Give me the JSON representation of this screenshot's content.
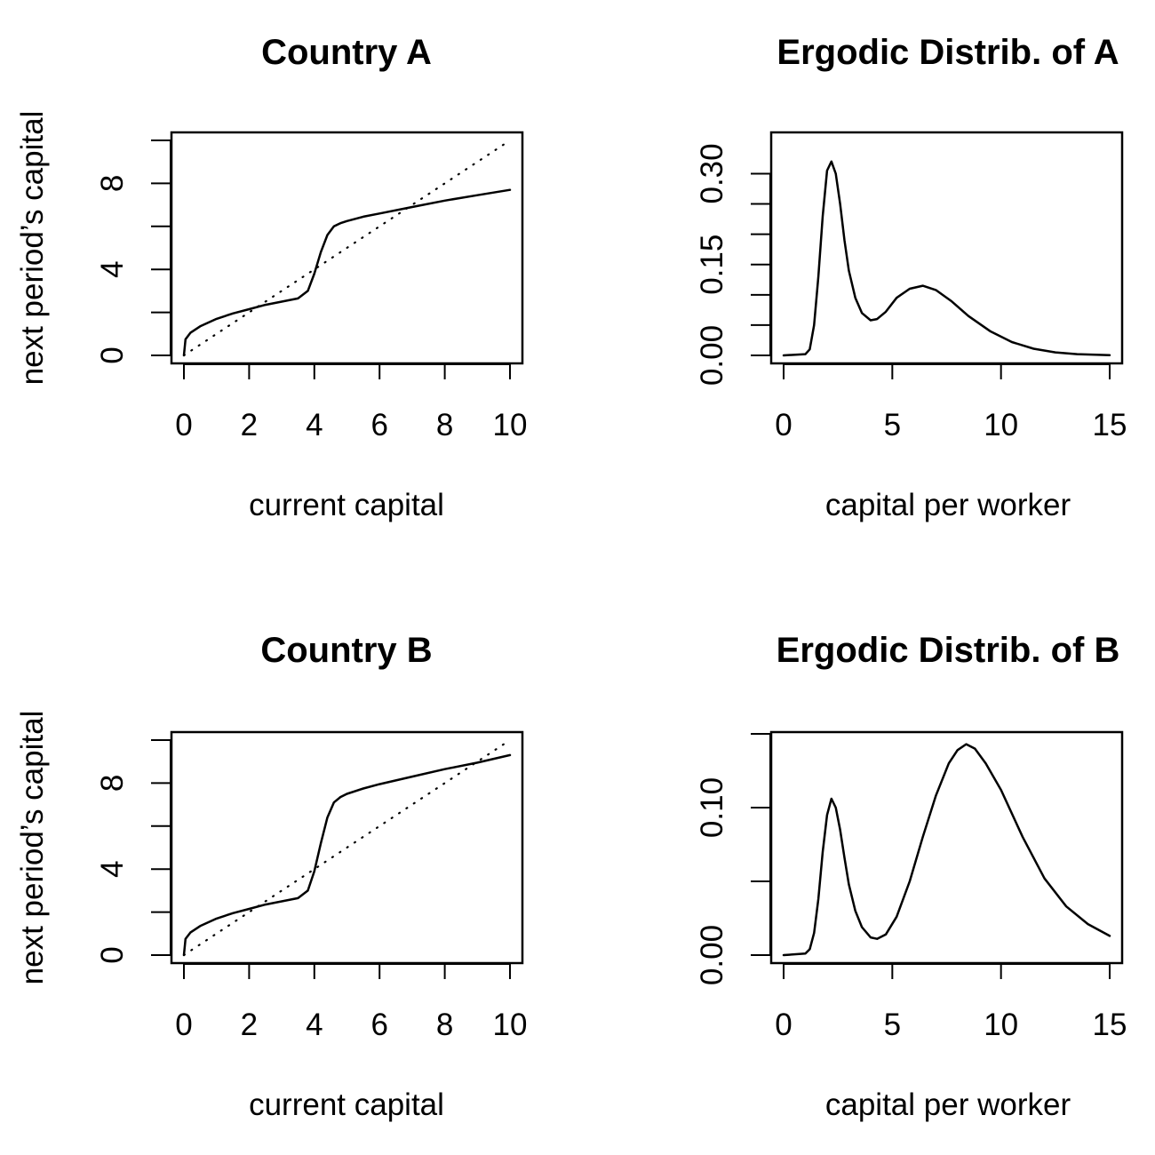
{
  "chart_data": [
    {
      "type": "line",
      "title": "Country A",
      "xlabel": "current capital",
      "ylabel": "next period’s capital",
      "xlim": [
        0,
        10
      ],
      "ylim": [
        0,
        10
      ],
      "x_ticks": [
        0,
        2,
        4,
        6,
        8,
        10
      ],
      "y_ticks": [
        0,
        2,
        4,
        6,
        8,
        10
      ],
      "y_tick_labels": [
        "0",
        "",
        "4",
        "",
        "8",
        ""
      ],
      "series": [
        {
          "style": "solid",
          "x": [
            0,
            0.05,
            0.2,
            0.5,
            1,
            1.5,
            2,
            2.5,
            3,
            3.5,
            3.8,
            4.0,
            4.2,
            4.4,
            4.6,
            4.8,
            5,
            5.5,
            6,
            7,
            8,
            9,
            10
          ],
          "y": [
            0,
            0.75,
            1.05,
            1.35,
            1.7,
            1.95,
            2.15,
            2.35,
            2.5,
            2.65,
            3.0,
            3.8,
            4.8,
            5.6,
            6.0,
            6.15,
            6.25,
            6.45,
            6.6,
            6.9,
            7.2,
            7.45,
            7.7
          ]
        },
        {
          "style": "dotted",
          "x": [
            0,
            10
          ],
          "y": [
            0,
            10
          ]
        }
      ]
    },
    {
      "type": "line",
      "title": "Ergodic Distrib. of A",
      "xlabel": "capital per worker",
      "ylabel": "",
      "xlim": [
        0,
        15
      ],
      "ylim": [
        0,
        0.33
      ],
      "x_ticks": [
        0,
        5,
        10,
        15
      ],
      "y_ticks": [
        0,
        0.05,
        0.1,
        0.15,
        0.2,
        0.25,
        0.3
      ],
      "y_tick_labels": [
        "0.00",
        "",
        "",
        "0.15",
        "",
        "",
        "0.30"
      ],
      "series": [
        {
          "style": "solid",
          "x": [
            0,
            1,
            1.2,
            1.4,
            1.6,
            1.8,
            2.0,
            2.2,
            2.4,
            2.6,
            2.8,
            3.0,
            3.3,
            3.6,
            4.0,
            4.3,
            4.7,
            5.2,
            5.8,
            6.4,
            7.0,
            7.7,
            8.5,
            9.5,
            10.5,
            11.5,
            12.5,
            13.5,
            15
          ],
          "y": [
            0,
            0.002,
            0.01,
            0.05,
            0.13,
            0.23,
            0.305,
            0.32,
            0.3,
            0.25,
            0.19,
            0.14,
            0.095,
            0.07,
            0.058,
            0.06,
            0.072,
            0.095,
            0.11,
            0.115,
            0.108,
            0.09,
            0.065,
            0.04,
            0.022,
            0.011,
            0.005,
            0.002,
            0.0005
          ]
        }
      ]
    },
    {
      "type": "line",
      "title": "Country B",
      "xlabel": "current capital",
      "ylabel": "next period’s capital",
      "xlim": [
        0,
        10
      ],
      "ylim": [
        0,
        10
      ],
      "x_ticks": [
        0,
        2,
        4,
        6,
        8,
        10
      ],
      "y_ticks": [
        0,
        2,
        4,
        6,
        8,
        10
      ],
      "y_tick_labels": [
        "0",
        "",
        "4",
        "",
        "8",
        ""
      ],
      "series": [
        {
          "style": "solid",
          "x": [
            0,
            0.05,
            0.2,
            0.5,
            1,
            1.5,
            2,
            2.5,
            3,
            3.5,
            3.8,
            4.0,
            4.2,
            4.4,
            4.6,
            4.8,
            5,
            5.5,
            6,
            7,
            8,
            9,
            10
          ],
          "y": [
            0,
            0.75,
            1.05,
            1.35,
            1.7,
            1.95,
            2.15,
            2.35,
            2.5,
            2.65,
            3.0,
            3.9,
            5.2,
            6.4,
            7.1,
            7.35,
            7.5,
            7.75,
            7.95,
            8.3,
            8.65,
            8.95,
            9.3
          ]
        },
        {
          "style": "dotted",
          "x": [
            0,
            10
          ],
          "y": [
            0,
            10
          ]
        }
      ]
    },
    {
      "type": "line",
      "title": "Ergodic Distrib. of B",
      "xlabel": "capital per worker",
      "ylabel": "",
      "xlim": [
        0,
        15
      ],
      "ylim": [
        0,
        0.15
      ],
      "x_ticks": [
        0,
        5,
        10,
        15
      ],
      "y_ticks": [
        0,
        0.05,
        0.1,
        0.15
      ],
      "y_tick_labels": [
        "0.00",
        "",
        "0.10",
        ""
      ],
      "series": [
        {
          "style": "solid",
          "x": [
            0,
            1,
            1.2,
            1.4,
            1.6,
            1.8,
            2.0,
            2.2,
            2.4,
            2.6,
            2.8,
            3.0,
            3.3,
            3.6,
            4.0,
            4.3,
            4.7,
            5.2,
            5.8,
            6.4,
            7.0,
            7.6,
            8.0,
            8.4,
            8.8,
            9.3,
            10,
            11,
            12,
            13,
            14,
            15
          ],
          "y": [
            0,
            0.001,
            0.004,
            0.015,
            0.038,
            0.07,
            0.095,
            0.106,
            0.1,
            0.085,
            0.066,
            0.048,
            0.03,
            0.019,
            0.012,
            0.011,
            0.014,
            0.026,
            0.05,
            0.08,
            0.108,
            0.13,
            0.139,
            0.143,
            0.14,
            0.13,
            0.112,
            0.08,
            0.052,
            0.033,
            0.021,
            0.013
          ]
        }
      ]
    }
  ]
}
